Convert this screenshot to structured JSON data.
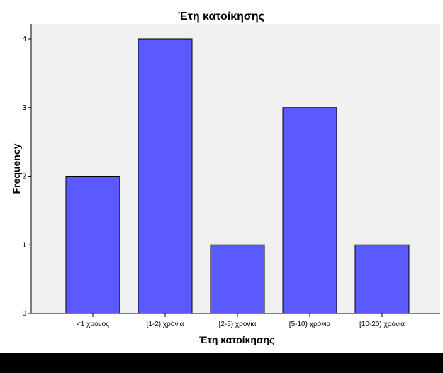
{
  "chart_data": {
    "type": "bar",
    "title": "Έτη κατοίκησης",
    "xlabel": "Έτη κατοίκησης",
    "ylabel": "Frequency",
    "categories": [
      "<1 χρόνος",
      "[1-2) χρόνια",
      "[2-5) χρόνια",
      "[5-10) χρόνια",
      "[10-20) χρόνια"
    ],
    "values": [
      2,
      4,
      1,
      3,
      1
    ],
    "ylim": [
      0,
      4
    ],
    "yticks": [
      "0",
      "1",
      "2",
      "3",
      "4"
    ],
    "grid": false,
    "colors": {
      "bar": "#5a5aff",
      "bar_stroke": "#000000",
      "plot_background": "#f0f0f0",
      "footer_band": "#000000"
    }
  }
}
